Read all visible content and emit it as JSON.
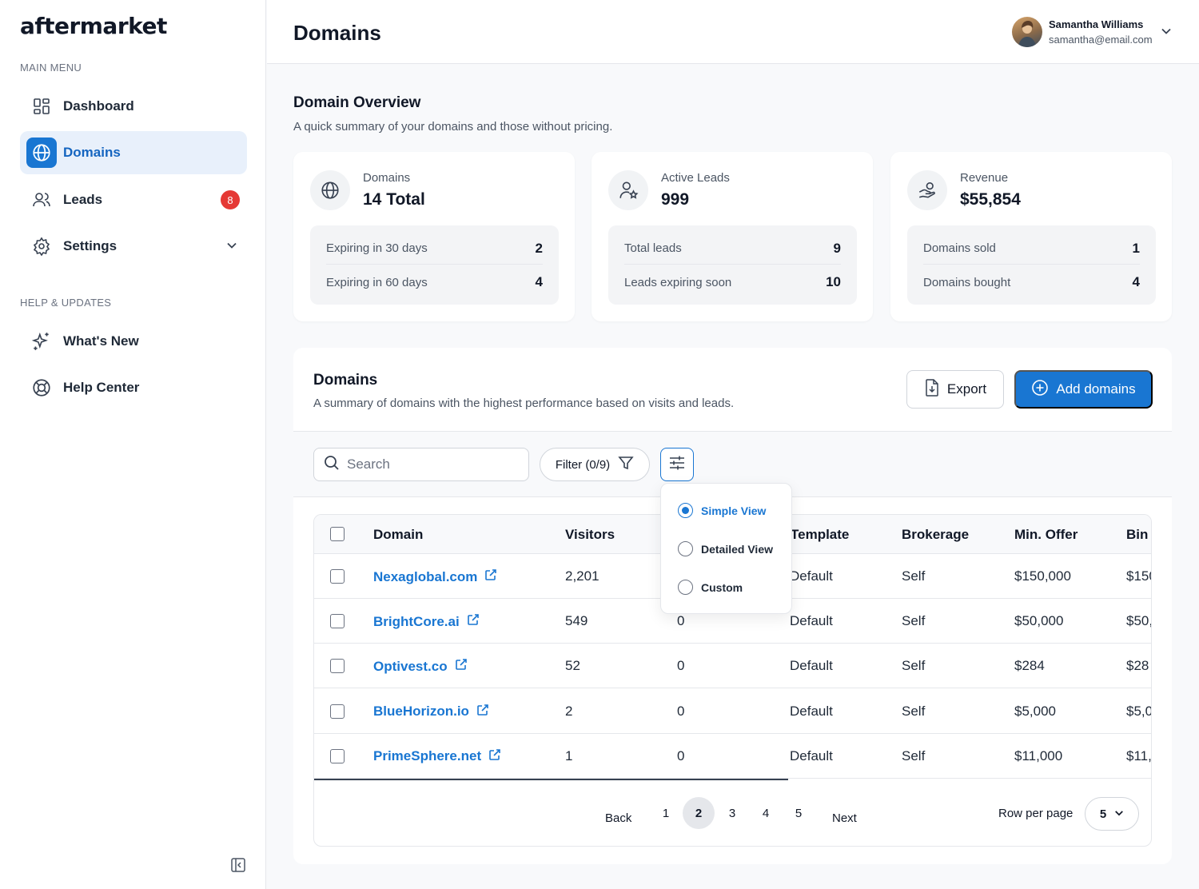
{
  "app": {
    "logo": "aftermarket"
  },
  "sidebar": {
    "main_menu_label": "MAIN MENU",
    "help_label": "HELP & UPDATES",
    "items": [
      {
        "label": "Dashboard",
        "icon": "dashboard-icon"
      },
      {
        "label": "Domains",
        "icon": "globe-icon",
        "active": true
      },
      {
        "label": "Leads",
        "icon": "users-icon",
        "badge": "8"
      },
      {
        "label": "Settings",
        "icon": "gear-icon"
      }
    ],
    "help_items": [
      {
        "label": "What's New",
        "icon": "sparkle-icon"
      },
      {
        "label": "Help Center",
        "icon": "lifebuoy-icon"
      }
    ]
  },
  "header": {
    "title": "Domains",
    "user": {
      "name": "Samantha Williams",
      "email": "samantha@email.com"
    }
  },
  "overview": {
    "title": "Domain Overview",
    "subtitle": "A quick summary of your domains and those without pricing.",
    "cards": [
      {
        "label": "Domains",
        "value": "14 Total",
        "icon": "globe-icon",
        "rows": [
          {
            "label": "Expiring in 30 days",
            "value": "2"
          },
          {
            "label": "Expiring in 60 days",
            "value": "4"
          }
        ]
      },
      {
        "label": "Active Leads",
        "value": "999",
        "icon": "user-star-icon",
        "rows": [
          {
            "label": "Total leads",
            "value": "9"
          },
          {
            "label": "Leads expiring soon",
            "value": "10"
          }
        ]
      },
      {
        "label": "Revenue",
        "value": "$55,854",
        "icon": "hand-coin-icon",
        "rows": [
          {
            "label": "Domains sold",
            "value": "1"
          },
          {
            "label": "Domains bought",
            "value": "4"
          }
        ]
      }
    ]
  },
  "domains_panel": {
    "title": "Domains",
    "subtitle": "A summary of domains with the highest performance based on visits and leads.",
    "export_label": "Export",
    "add_label": "Add domains",
    "search_placeholder": "Search",
    "filter_label": "Filter (0/9)",
    "columns": [
      "Domain",
      "Visitors",
      "Template",
      "Brokerage",
      "Min. Offer",
      "Bin P"
    ],
    "rows": [
      {
        "domain": "Nexaglobal.com",
        "visitors": "2,201",
        "leads": "",
        "template": "Default",
        "brokerage": "Self",
        "min_offer": "$150,000",
        "bin": "$150"
      },
      {
        "domain": "BrightCore.ai",
        "visitors": "549",
        "leads": "0",
        "template": "Default",
        "brokerage": "Self",
        "min_offer": "$50,000",
        "bin": "$50,"
      },
      {
        "domain": "Optivest.co",
        "visitors": "52",
        "leads": "0",
        "template": "Default",
        "brokerage": "Self",
        "min_offer": "$284",
        "bin": "$28"
      },
      {
        "domain": "BlueHorizon.io",
        "visitors": "2",
        "leads": "0",
        "template": "Default",
        "brokerage": "Self",
        "min_offer": "$5,000",
        "bin": "$5,0"
      },
      {
        "domain": "PrimeSphere.net",
        "visitors": "1",
        "leads": "0",
        "template": "Default",
        "brokerage": "Self",
        "min_offer": "$11,000",
        "bin": "$11,"
      }
    ],
    "pagination": {
      "back": "Back",
      "next": "Next",
      "pages": [
        "1",
        "2",
        "3",
        "4",
        "5"
      ],
      "current": "2",
      "rows_per_page_label": "Row per page",
      "rows_per_page": "5"
    },
    "view_menu": {
      "options": [
        {
          "label": "Simple View",
          "selected": true
        },
        {
          "label": "Detailed View",
          "selected": false
        },
        {
          "label": "Custom",
          "selected": false
        }
      ]
    }
  },
  "colors": {
    "accent": "#1976d2",
    "badge": "#e53935"
  }
}
